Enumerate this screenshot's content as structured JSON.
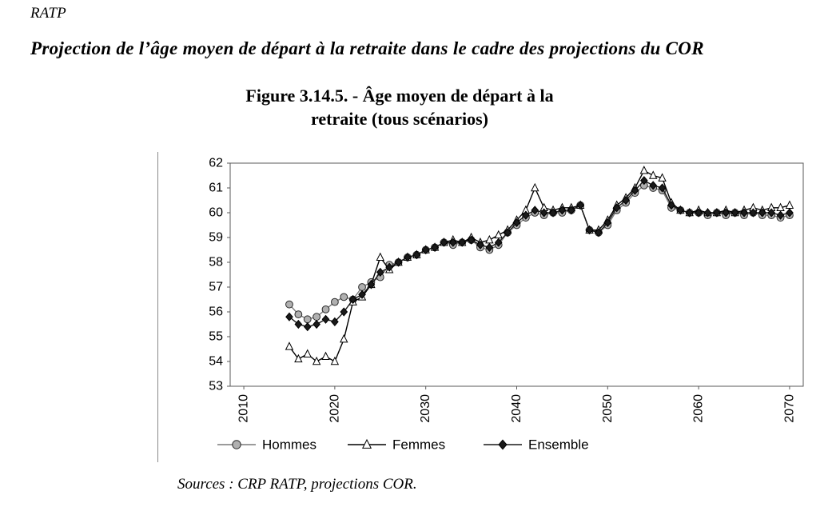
{
  "page": {
    "heading": "RATP",
    "subtitle": "Projection de l’âge moyen de départ à la retraite dans le cadre des projections du COR",
    "source_note": "Sources : CRP RATP, projections COR."
  },
  "figure": {
    "title": "Figure 3.14.5. - Âge moyen de départ à la\nretraite (tous scénarios)"
  },
  "chart_data": {
    "type": "line",
    "title": "Figure 3.14.5. - Âge moyen de départ à la retraite (tous scénarios)",
    "xlabel": "",
    "ylabel": "",
    "ylim": [
      53,
      62
    ],
    "y_ticks": [
      53,
      54,
      55,
      56,
      57,
      58,
      59,
      60,
      61,
      62
    ],
    "x_ticks": [
      2010,
      2020,
      2030,
      2040,
      2050,
      2060,
      2070
    ],
    "grid": false,
    "legend_position": "bottom",
    "x": [
      2015,
      2016,
      2017,
      2018,
      2019,
      2020,
      2021,
      2022,
      2023,
      2024,
      2025,
      2026,
      2027,
      2028,
      2029,
      2030,
      2031,
      2032,
      2033,
      2034,
      2035,
      2036,
      2037,
      2038,
      2039,
      2040,
      2041,
      2042,
      2043,
      2044,
      2045,
      2046,
      2047,
      2048,
      2049,
      2050,
      2051,
      2052,
      2053,
      2054,
      2055,
      2056,
      2057,
      2058,
      2059,
      2060,
      2061,
      2062,
      2063,
      2064,
      2065,
      2066,
      2067,
      2068,
      2069,
      2070
    ],
    "series": [
      {
        "name": "Hommes",
        "marker": "circle",
        "line_color": "#7a7a7a",
        "marker_fill": "#b0b0b0",
        "marker_stroke": "#2b2b2b",
        "values": [
          56.3,
          55.9,
          55.7,
          55.8,
          56.1,
          56.4,
          56.6,
          56.5,
          57.0,
          57.2,
          57.4,
          57.9,
          58.0,
          58.2,
          58.3,
          58.5,
          58.6,
          58.8,
          58.7,
          58.8,
          58.9,
          58.6,
          58.5,
          58.7,
          59.2,
          59.5,
          59.8,
          60.0,
          59.9,
          60.0,
          60.0,
          60.1,
          60.3,
          59.3,
          59.2,
          59.5,
          60.1,
          60.4,
          60.8,
          61.1,
          61.0,
          60.9,
          60.2,
          60.1,
          60.0,
          60.0,
          59.9,
          60.0,
          59.9,
          60.0,
          59.9,
          60.0,
          59.9,
          59.9,
          59.8,
          59.9
        ]
      },
      {
        "name": "Femmes",
        "marker": "triangle",
        "line_color": "#000000",
        "marker_fill": "#ffffff",
        "marker_stroke": "#000000",
        "values": [
          54.6,
          54.1,
          54.3,
          54.0,
          54.2,
          54.0,
          54.9,
          56.4,
          56.6,
          57.1,
          58.2,
          57.7,
          58.0,
          58.2,
          58.3,
          58.5,
          58.6,
          58.8,
          58.9,
          58.8,
          59.0,
          58.8,
          58.9,
          59.1,
          59.3,
          59.7,
          60.1,
          61.0,
          60.2,
          60.1,
          60.2,
          60.2,
          60.3,
          59.3,
          59.3,
          59.7,
          60.3,
          60.6,
          61.0,
          61.7,
          61.5,
          61.4,
          60.4,
          60.1,
          60.0,
          60.1,
          60.0,
          60.0,
          60.1,
          60.0,
          60.1,
          60.2,
          60.1,
          60.2,
          60.2,
          60.3
        ]
      },
      {
        "name": "Ensemble",
        "marker": "diamond",
        "line_color": "#1a1a1a",
        "marker_fill": "#1a1a1a",
        "marker_stroke": "#000000",
        "values": [
          55.8,
          55.5,
          55.4,
          55.5,
          55.7,
          55.6,
          56.0,
          56.5,
          56.7,
          57.1,
          57.6,
          57.8,
          58.0,
          58.2,
          58.3,
          58.5,
          58.6,
          58.8,
          58.8,
          58.8,
          58.9,
          58.7,
          58.6,
          58.8,
          59.2,
          59.6,
          59.9,
          60.1,
          60.0,
          60.0,
          60.1,
          60.1,
          60.3,
          59.3,
          59.2,
          59.6,
          60.2,
          60.5,
          60.9,
          61.3,
          61.1,
          61.0,
          60.3,
          60.1,
          60.0,
          60.0,
          60.0,
          60.0,
          60.0,
          60.0,
          60.0,
          60.0,
          60.0,
          60.0,
          59.9,
          60.0
        ]
      }
    ]
  }
}
